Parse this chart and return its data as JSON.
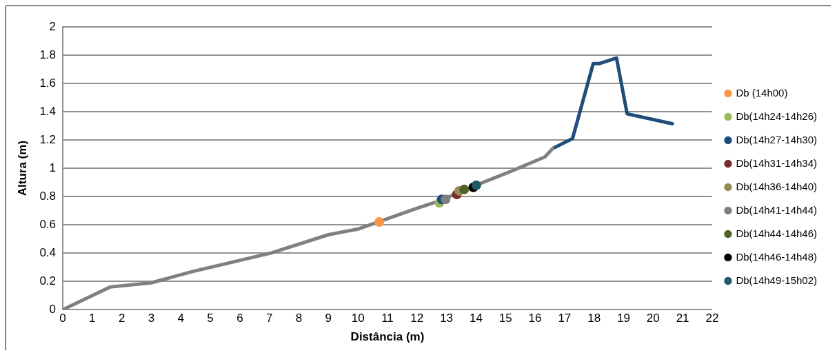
{
  "chart_data": {
    "type": "scatter",
    "xlabel": "Distância (m)",
    "ylabel": "Altura (m)",
    "xlim": [
      0,
      22
    ],
    "xticks": [
      0,
      1,
      2,
      3,
      4,
      5,
      6,
      7,
      8,
      9,
      10,
      11,
      12,
      13,
      14,
      15,
      16,
      17,
      18,
      19,
      20,
      21,
      22
    ],
    "ylim": [
      0,
      2
    ],
    "yticks": [
      0,
      0.2,
      0.4,
      0.6,
      0.8,
      1,
      1.2,
      1.4,
      1.6,
      1.8,
      2
    ],
    "grid": "y",
    "legend": "right",
    "series": [
      {
        "type": "line",
        "marker": "none",
        "color": "#808080",
        "x": [
          0,
          1.6,
          3.0,
          4.4,
          7.05,
          9.0,
          10.0,
          11.9,
          12.76,
          14.0,
          15.2,
          16.33,
          16.6
        ],
        "values": [
          0,
          0.16,
          0.19,
          0.27,
          0.4,
          0.53,
          0.57,
          0.71,
          0.77,
          0.88,
          0.98,
          1.08,
          1.14
        ]
      },
      {
        "type": "line",
        "marker": "none",
        "color": "#1f4e79",
        "x": [
          16.6,
          17.27,
          17.97,
          18.17,
          18.76,
          19.12,
          20.65
        ],
        "values": [
          1.14,
          1.21,
          1.74,
          1.74,
          1.78,
          1.385,
          1.315
        ]
      },
      {
        "marker": "circle",
        "name": "Db (14h00)",
        "color": "#f79646",
        "x": [
          10.72
        ],
        "values": [
          0.62
        ]
      },
      {
        "marker": "circle",
        "name": "Db(14h24-14h26)",
        "color": "#9bbb59",
        "x": [
          12.76
        ],
        "values": [
          0.755
        ]
      },
      {
        "marker": "circle",
        "name": "Db(14h27-14h30)",
        "color": "#1f497d",
        "x": [
          12.84
        ],
        "values": [
          0.78
        ]
      },
      {
        "marker": "circle",
        "name": "Db(14h31-14h34)",
        "color": "#772c2a",
        "x": [
          13.35
        ],
        "values": [
          0.815
        ]
      },
      {
        "marker": "circle",
        "name": "Db(14h36-14h40)",
        "color": "#948a54",
        "x": [
          13.43
        ],
        "values": [
          0.84
        ]
      },
      {
        "marker": "circle",
        "name": "Db(14h41-14h44)",
        "color": "#7f7f7f",
        "x": [
          12.97
        ],
        "values": [
          0.78
        ]
      },
      {
        "marker": "circle",
        "name": "Db(14h44-14h46)",
        "color": "#4f6228",
        "x": [
          13.6
        ],
        "values": [
          0.85
        ]
      },
      {
        "marker": "circle",
        "name": "Db(14h46-14h48)",
        "color": "#000000",
        "x": [
          13.91
        ],
        "values": [
          0.865
        ]
      },
      {
        "marker": "circle",
        "name": "Db(14h49-15h02)",
        "color": "#215968",
        "x": [
          14.01
        ],
        "values": [
          0.88
        ]
      }
    ]
  }
}
